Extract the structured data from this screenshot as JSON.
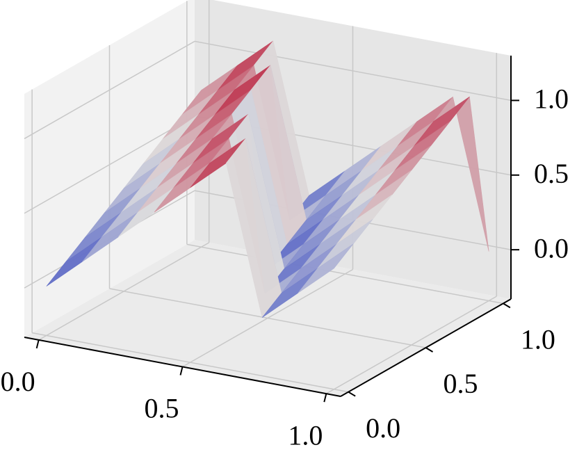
{
  "chart_data": {
    "type": "surface",
    "x": [
      0,
      0.125,
      0.25,
      0.375,
      0.5,
      0.625,
      0.75,
      0.875,
      1
    ],
    "y": [
      0,
      0.125,
      0.25,
      0.375,
      0.5,
      0.625,
      0.75,
      0.875,
      1
    ],
    "z": [
      [
        0,
        0.21,
        0.42,
        0.63,
        0.84,
        1.05,
        0.06,
        0.27,
        0.48
      ],
      [
        0.09,
        0.3,
        0.51,
        0.72,
        0.93,
        1.14,
        0.15,
        0.36,
        0.57
      ],
      [
        0.18,
        0.39,
        0.6,
        0.81,
        1.02,
        0.03,
        0.24,
        0.45,
        0.66
      ],
      [
        0.27,
        0.48,
        0.69,
        0.9,
        1.11,
        0.12,
        0.33,
        0.54,
        0.75
      ],
      [
        0.36,
        0.57,
        0.78,
        0.99,
        0,
        0.21,
        0.42,
        0.63,
        0.84
      ],
      [
        0.45,
        0.66,
        0.87,
        1.08,
        0.09,
        0.3,
        0.51,
        0.72,
        0.93
      ],
      [
        0.54,
        0.75,
        0.96,
        1.17,
        0.18,
        0.39,
        0.6,
        0.81,
        1.02
      ],
      [
        0.63,
        0.84,
        1.05,
        0.06,
        0.27,
        0.48,
        0.69,
        0.9,
        1.11
      ],
      [
        0.72,
        0.93,
        1.14,
        0.15,
        0.36,
        0.57,
        0.78,
        0.99,
        0
      ]
    ],
    "xlim": [
      -0.05,
      1.05
    ],
    "ylim": [
      -0.05,
      1.05
    ],
    "zlim": [
      -0.33,
      1.3
    ],
    "xticks": [
      {
        "value": 0,
        "label": "0.0"
      },
      {
        "value": 0.5,
        "label": "0.5"
      },
      {
        "value": 1,
        "label": "1.0"
      }
    ],
    "yticks": [
      {
        "value": 0,
        "label": "0.0"
      },
      {
        "value": 0.5,
        "label": "0.5"
      },
      {
        "value": 1,
        "label": "1.0"
      }
    ],
    "zticks": [
      {
        "value": 0,
        "label": "0.0"
      },
      {
        "value": 0.5,
        "label": "0.5"
      },
      {
        "value": 1,
        "label": "1.0"
      }
    ],
    "colormap": [
      "#3b4cc0",
      "#dddddd",
      "#b40426"
    ],
    "grid": true
  }
}
